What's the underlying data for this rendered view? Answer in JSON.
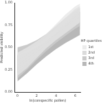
{
  "chart_data": {
    "type": "line",
    "x_label": "ln(conspecific pollen)",
    "y_label": "Predicted visibility",
    "legend_title": "HP quartiles",
    "legend": "right",
    "grid": false,
    "x": [
      0,
      1,
      2,
      3,
      4,
      5,
      6,
      6.5
    ],
    "xlim": [
      -0.3,
      6.6
    ],
    "xticks": [
      0,
      2,
      4,
      6
    ],
    "ylim": [
      0,
      1
    ],
    "yticks": [
      {
        "value": 0,
        "label": "0.00"
      },
      {
        "value": 0.25,
        "label": "0.25"
      },
      {
        "value": 0.5,
        "label": "0.50"
      },
      {
        "value": 0.75,
        "label": "0.75"
      },
      {
        "value": 1,
        "label": "1.00"
      }
    ],
    "series": [
      {
        "name": "1st",
        "color": "#e6e6e6",
        "values": [
          0.3,
          0.38,
          0.47,
          0.57,
          0.67,
          0.77,
          0.87,
          0.92
        ],
        "lower": [
          0.18,
          0.27,
          0.38,
          0.49,
          0.58,
          0.66,
          0.74,
          0.78
        ],
        "upper": [
          0.44,
          0.5,
          0.57,
          0.65,
          0.76,
          0.87,
          0.96,
          0.99
        ]
      },
      {
        "name": "2nd",
        "color": "#cfcfcf",
        "values": [
          0.27,
          0.35,
          0.44,
          0.54,
          0.64,
          0.74,
          0.84,
          0.88
        ],
        "lower": [
          0.15,
          0.25,
          0.36,
          0.46,
          0.55,
          0.63,
          0.71,
          0.74
        ],
        "upper": [
          0.42,
          0.47,
          0.53,
          0.62,
          0.72,
          0.83,
          0.93,
          0.96
        ]
      },
      {
        "name": "3rd",
        "color": "#b8b8b8",
        "values": [
          0.35,
          0.42,
          0.49,
          0.57,
          0.65,
          0.73,
          0.81,
          0.84
        ],
        "lower": [
          0.22,
          0.31,
          0.4,
          0.49,
          0.56,
          0.62,
          0.68,
          0.7
        ],
        "upper": [
          0.5,
          0.53,
          0.58,
          0.65,
          0.74,
          0.83,
          0.91,
          0.94
        ]
      },
      {
        "name": "4th",
        "color": "#a0a0a0",
        "values": [
          0.25,
          0.32,
          0.4,
          0.48,
          0.57,
          0.66,
          0.75,
          0.79
        ],
        "lower": [
          0.12,
          0.21,
          0.31,
          0.4,
          0.48,
          0.55,
          0.61,
          0.64
        ],
        "upper": [
          0.41,
          0.44,
          0.5,
          0.57,
          0.66,
          0.76,
          0.86,
          0.9
        ]
      }
    ]
  }
}
